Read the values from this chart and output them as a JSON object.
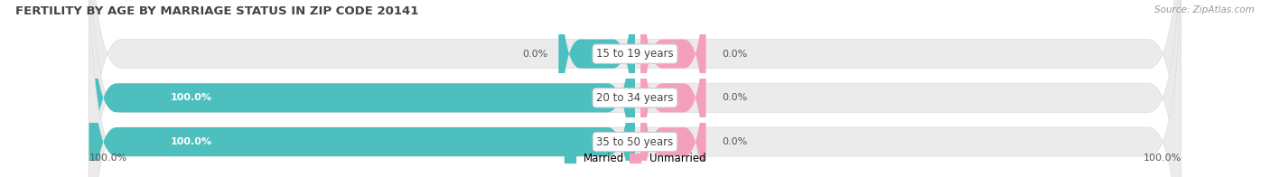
{
  "title": "FERTILITY BY AGE BY MARRIAGE STATUS IN ZIP CODE 20141",
  "source": "Source: ZipAtlas.com",
  "categories": [
    "15 to 19 years",
    "20 to 34 years",
    "35 to 50 years"
  ],
  "married_values": [
    0.0,
    100.0,
    100.0
  ],
  "unmarried_values": [
    0.0,
    0.0,
    0.0
  ],
  "married_color": "#4dbfbf",
  "unmarried_color": "#f4a0bc",
  "bar_bg_color": "#ebebeb",
  "bar_bg_color2": "#f5f5f5",
  "title_fontsize": 9.5,
  "label_fontsize": 8.0,
  "cat_label_fontsize": 8.5,
  "legend_fontsize": 8.5,
  "source_fontsize": 7.5
}
